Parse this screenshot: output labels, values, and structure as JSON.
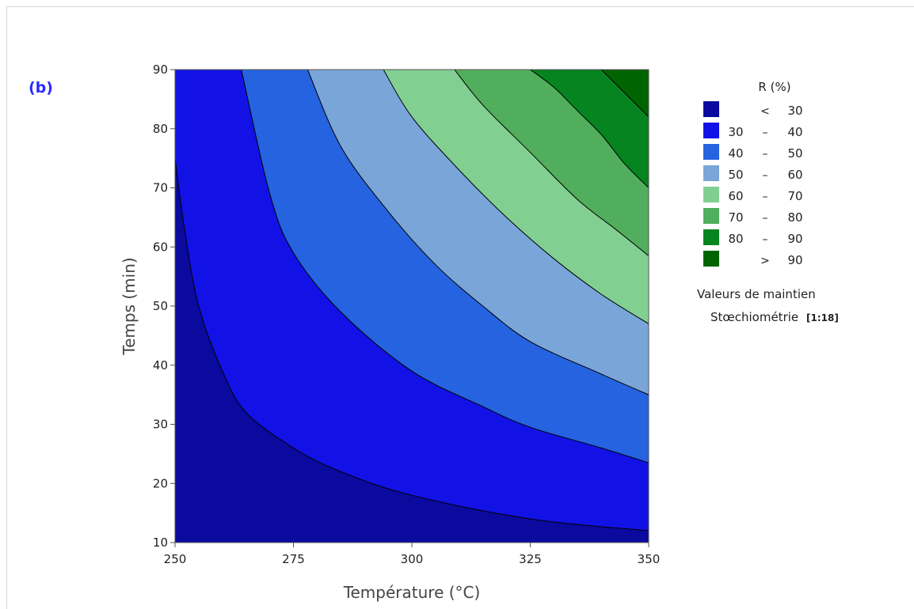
{
  "panel_label": "(b)",
  "chart_data": {
    "type": "contour",
    "x_min": 250,
    "x_max": 350,
    "y_min": 10,
    "y_max": 90,
    "xlabel": "Température (°C)",
    "ylabel": "Temps (min)",
    "xticks": [
      250,
      275,
      300,
      325,
      350
    ],
    "yticks": [
      10,
      20,
      30,
      40,
      50,
      60,
      70,
      80,
      90
    ],
    "contour_levels": [
      {
        "value": 30,
        "points": [
          [
            250,
            75
          ],
          [
            252,
            63
          ],
          [
            255,
            50
          ],
          [
            260,
            39
          ],
          [
            265,
            32
          ],
          [
            275,
            26
          ],
          [
            285,
            22
          ],
          [
            300,
            18
          ],
          [
            325,
            14
          ],
          [
            350,
            12
          ]
        ]
      },
      {
        "value": 40,
        "points": [
          [
            264,
            90
          ],
          [
            270,
            69
          ],
          [
            275,
            59
          ],
          [
            285,
            49
          ],
          [
            300,
            39
          ],
          [
            315,
            33
          ],
          [
            325,
            29.5
          ],
          [
            340,
            26
          ],
          [
            350,
            23.5
          ]
        ]
      },
      {
        "value": 50,
        "points": [
          [
            278,
            90
          ],
          [
            285,
            77
          ],
          [
            295,
            66
          ],
          [
            305,
            57
          ],
          [
            315,
            50
          ],
          [
            325,
            44
          ],
          [
            340,
            38.5
          ],
          [
            350,
            35
          ]
        ]
      },
      {
        "value": 60,
        "points": [
          [
            294,
            90
          ],
          [
            300,
            82
          ],
          [
            310,
            73
          ],
          [
            320,
            65
          ],
          [
            330,
            58
          ],
          [
            340,
            52
          ],
          [
            350,
            47
          ]
        ]
      },
      {
        "value": 70,
        "points": [
          [
            309,
            90
          ],
          [
            315,
            84
          ],
          [
            325,
            76
          ],
          [
            335,
            68
          ],
          [
            343,
            63
          ],
          [
            350,
            58.5
          ]
        ]
      },
      {
        "value": 80,
        "points": [
          [
            325,
            90
          ],
          [
            330,
            87
          ],
          [
            335,
            83
          ],
          [
            340,
            79
          ],
          [
            345,
            74
          ],
          [
            350,
            70
          ]
        ]
      },
      {
        "value": 90,
        "points": [
          [
            340,
            90
          ],
          [
            345,
            86
          ],
          [
            350,
            82
          ]
        ]
      }
    ],
    "fill_colors": [
      "#0a0a9e",
      "#1212e6",
      "#2563e0",
      "#7aa5d8",
      "#82cf92",
      "#50ae5c",
      "#05841f",
      "#006400"
    ],
    "legend": {
      "title": "R  (%)",
      "entries": [
        {
          "low": "",
          "sep": "<",
          "high": "30",
          "color": "#0a0a9e"
        },
        {
          "low": "30",
          "sep": "–",
          "high": "40",
          "color": "#1212e6"
        },
        {
          "low": "40",
          "sep": "–",
          "high": "50",
          "color": "#2563e0"
        },
        {
          "low": "50",
          "sep": "–",
          "high": "60",
          "color": "#7aa5d8"
        },
        {
          "low": "60",
          "sep": "–",
          "high": "70",
          "color": "#82cf92"
        },
        {
          "low": "70",
          "sep": "–",
          "high": "80",
          "color": "#50ae5c"
        },
        {
          "low": "80",
          "sep": "–",
          "high": "90",
          "color": "#05841f"
        },
        {
          "low": "",
          "sep": ">",
          "high": "90",
          "color": "#006400"
        }
      ],
      "hold_title": "Valeurs de maintien",
      "hold_label": "Stœchiométrie",
      "hold_value": "[1:18]"
    }
  }
}
